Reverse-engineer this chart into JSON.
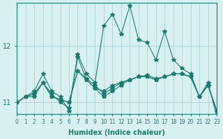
{
  "xlabel": "Humidex (Indice chaleur)",
  "ylabel": "",
  "background_color": "#d9f0f0",
  "grid_color": "#b0d8d8",
  "line_color": "#1a7a6e",
  "xlim": [
    0,
    23
  ],
  "ylim": [
    10.8,
    12.75
  ],
  "yticks": [
    11,
    12
  ],
  "xticks": [
    0,
    1,
    2,
    3,
    4,
    5,
    6,
    7,
    8,
    9,
    10,
    11,
    12,
    13,
    14,
    15,
    16,
    17,
    18,
    19,
    20,
    21,
    22,
    23
  ],
  "series": [
    [
      11.0,
      11.1,
      11.15,
      11.35,
      11.1,
      11.05,
      11.0,
      11.55,
      11.4,
      11.25,
      11.2,
      11.3,
      11.35,
      11.4,
      11.45,
      11.45,
      11.4,
      11.45,
      11.5,
      11.5,
      11.45,
      11.1,
      11.3,
      10.85
    ],
    [
      11.0,
      11.1,
      11.1,
      11.35,
      11.15,
      11.0,
      10.9,
      11.8,
      11.4,
      11.25,
      11.1,
      11.2,
      11.3,
      11.4,
      11.45,
      11.45,
      11.4,
      11.45,
      11.5,
      11.5,
      11.45,
      11.1,
      11.3,
      10.85
    ],
    [
      11.0,
      11.1,
      11.15,
      11.35,
      11.1,
      11.05,
      11.0,
      11.55,
      11.42,
      11.3,
      11.15,
      11.25,
      11.35,
      11.4,
      11.45,
      11.48,
      11.42,
      11.45,
      11.5,
      11.5,
      11.45,
      11.1,
      11.3,
      10.85
    ],
    [
      11.0,
      11.1,
      11.2,
      11.5,
      11.2,
      11.1,
      10.85,
      11.85,
      11.5,
      11.35,
      12.35,
      12.55,
      12.2,
      12.7,
      12.1,
      12.05,
      11.75,
      12.25,
      11.75,
      11.6,
      11.5,
      11.1,
      11.35,
      10.75
    ]
  ]
}
